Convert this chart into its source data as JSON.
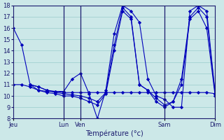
{
  "background_color": "#cce8e8",
  "grid_color": "#99cccc",
  "line_color": "#0000bb",
  "marker_color": "#0000bb",
  "xlabel": "Température (°c)",
  "ylim": [
    8,
    18
  ],
  "yticks": [
    8,
    9,
    10,
    11,
    12,
    13,
    14,
    15,
    16,
    17,
    18
  ],
  "xlim": [
    0,
    24
  ],
  "xtick_positions": [
    0,
    6,
    8,
    18,
    24
  ],
  "xtick_labels": [
    "Jeu",
    "Lun",
    "Ven",
    "Sam",
    "Dim"
  ],
  "vline_positions": [
    6,
    8,
    18
  ],
  "series": [
    {
      "x": [
        0,
        1,
        2,
        3,
        4,
        5,
        6,
        7,
        8,
        9,
        10,
        11,
        12,
        13,
        14,
        15,
        16,
        17,
        18,
        19,
        20,
        21,
        22,
        23,
        24
      ],
      "y": [
        16.0,
        14.5,
        11.0,
        10.8,
        10.5,
        10.4,
        10.3,
        10.3,
        10.3,
        10.3,
        10.3,
        10.3,
        10.3,
        10.3,
        10.3,
        10.3,
        10.3,
        10.3,
        10.3,
        10.3,
        10.3,
        10.3,
        10.3,
        10.3,
        10.2
      ]
    },
    {
      "x": [
        0,
        1,
        2,
        3,
        4,
        5,
        6,
        7,
        8,
        9,
        10,
        11,
        12,
        13,
        14,
        15,
        16,
        17,
        18,
        19,
        20,
        21,
        22,
        23,
        24
      ],
      "y": [
        11.0,
        11.0,
        10.8,
        10.5,
        10.4,
        10.4,
        10.4,
        11.5,
        12.0,
        10.2,
        8.0,
        10.5,
        15.5,
        18.0,
        17.5,
        16.5,
        11.5,
        10.0,
        9.7,
        9.0,
        9.0,
        17.5,
        18.0,
        17.5,
        10.2
      ]
    },
    {
      "x": [
        2,
        3,
        4,
        5,
        6,
        7,
        8,
        9,
        10,
        11,
        12,
        13,
        14,
        15,
        16,
        17,
        18,
        19,
        20,
        21,
        22,
        23,
        24
      ],
      "y": [
        11.0,
        10.8,
        10.5,
        10.3,
        10.2,
        10.1,
        10.0,
        9.8,
        9.5,
        10.3,
        14.5,
        17.8,
        17.0,
        11.0,
        10.5,
        9.5,
        9.0,
        9.5,
        11.5,
        17.0,
        17.8,
        17.0,
        10.2
      ]
    },
    {
      "x": [
        2,
        3,
        4,
        5,
        6,
        7,
        8,
        9,
        10,
        11,
        12,
        13,
        14,
        15,
        16,
        17,
        18,
        19,
        20,
        21,
        22,
        23,
        24
      ],
      "y": [
        11.0,
        10.5,
        10.3,
        10.2,
        10.0,
        10.0,
        9.8,
        9.5,
        9.2,
        10.2,
        14.0,
        17.5,
        16.8,
        11.0,
        10.5,
        9.8,
        9.2,
        9.5,
        11.0,
        16.8,
        17.5,
        16.0,
        10.0
      ]
    }
  ]
}
